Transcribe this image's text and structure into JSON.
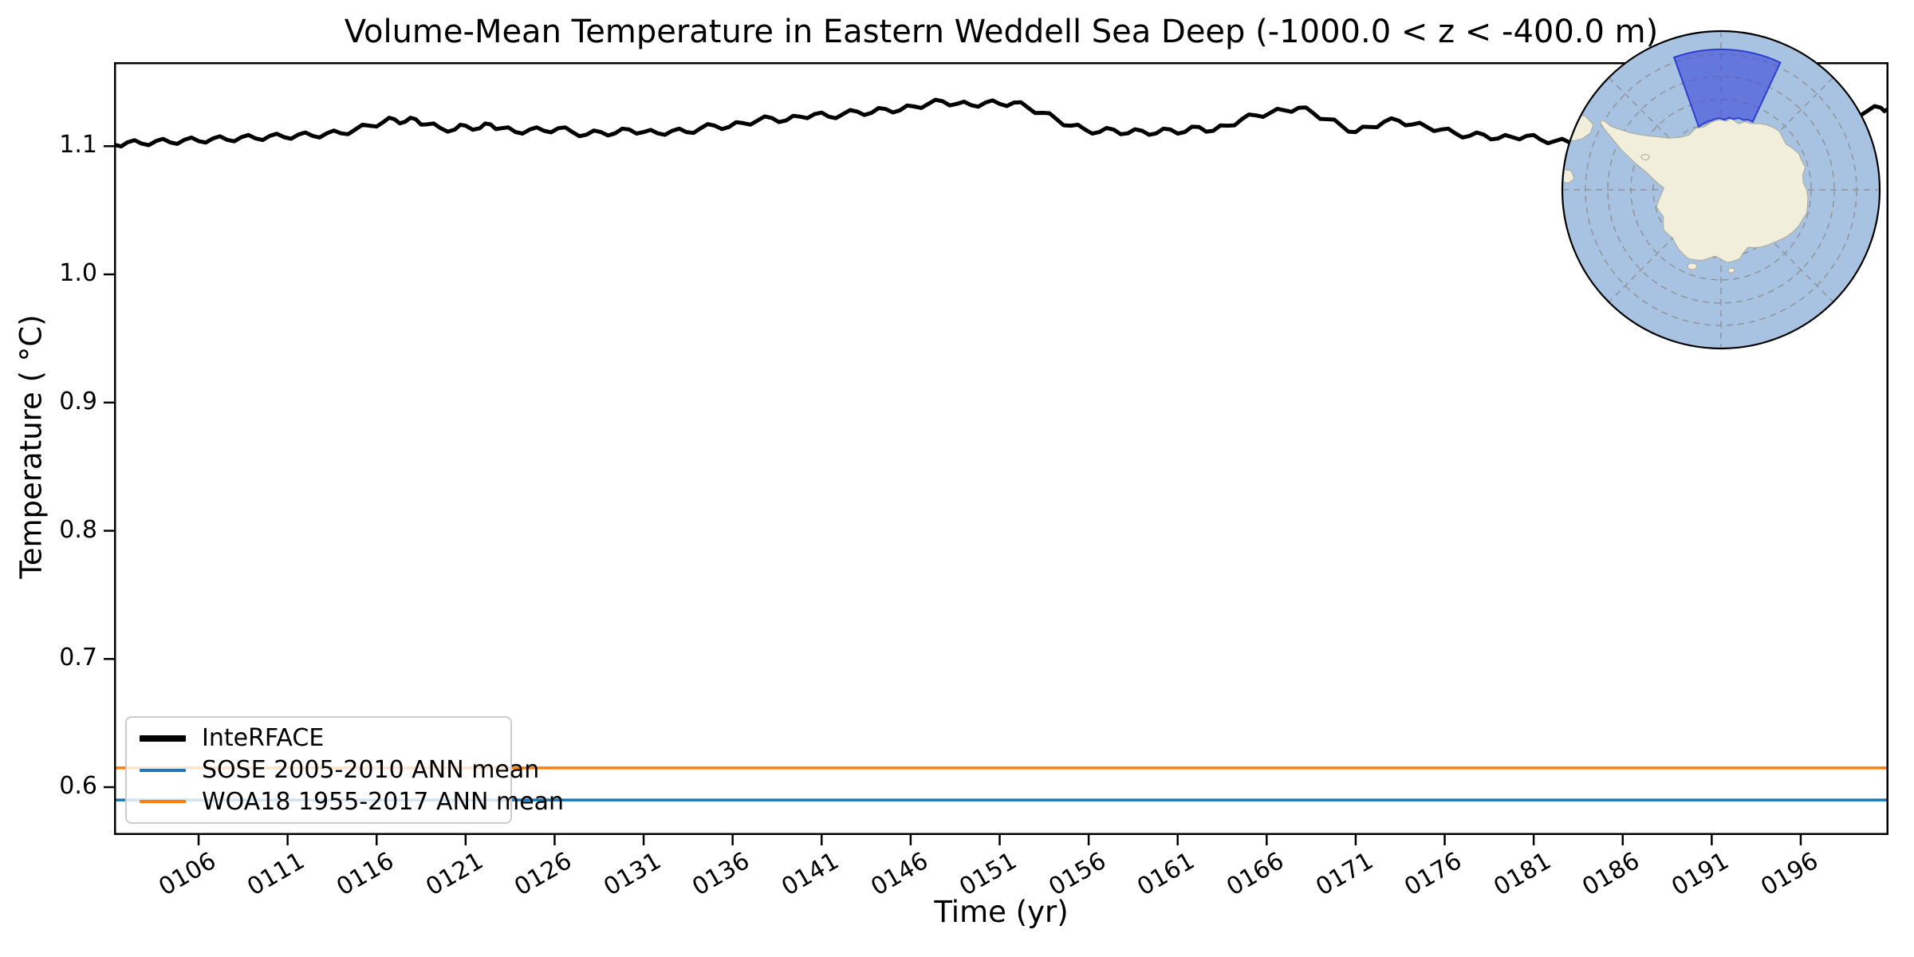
{
  "chart_data": {
    "type": "line",
    "title": "Volume-Mean Temperature in Eastern Weddell Sea Deep (-1000.0 < z < -400.0 m)",
    "xlabel": "Time (yr)",
    "ylabel": "Temperature ( °C)",
    "xlim": [
      101.25,
      200.93
    ],
    "ylim": [
      0.5627,
      1.1655
    ],
    "grid": false,
    "legend_position": "lower left",
    "xticks": [
      {
        "value": 106,
        "label": "0106"
      },
      {
        "value": 111,
        "label": "0111"
      },
      {
        "value": 116,
        "label": "0116"
      },
      {
        "value": 121,
        "label": "0121"
      },
      {
        "value": 126,
        "label": "0126"
      },
      {
        "value": 131,
        "label": "0131"
      },
      {
        "value": 136,
        "label": "0136"
      },
      {
        "value": 141,
        "label": "0141"
      },
      {
        "value": 146,
        "label": "0146"
      },
      {
        "value": 151,
        "label": "0151"
      },
      {
        "value": 156,
        "label": "0156"
      },
      {
        "value": 161,
        "label": "0161"
      },
      {
        "value": 166,
        "label": "0166"
      },
      {
        "value": 171,
        "label": "0171"
      },
      {
        "value": 176,
        "label": "0176"
      },
      {
        "value": 181,
        "label": "0181"
      },
      {
        "value": 186,
        "label": "0186"
      },
      {
        "value": 191,
        "label": "0191"
      },
      {
        "value": 196,
        "label": "0196"
      }
    ],
    "yticks": [
      {
        "value": 0.6,
        "label": "0.6"
      },
      {
        "value": 0.7,
        "label": "0.7"
      },
      {
        "value": 0.8,
        "label": "0.8"
      },
      {
        "value": 0.9,
        "label": "0.9"
      },
      {
        "value": 1.0,
        "label": "1.0"
      },
      {
        "value": 1.1,
        "label": "1.1"
      }
    ],
    "series": [
      {
        "name": "InteRFACE",
        "color": "#000000",
        "linewidth": 5,
        "legend_linewidth": 8,
        "monthly_noise": 0.0022,
        "points": [
          [
            101.3,
            1.101
          ],
          [
            102.0,
            1.103
          ],
          [
            102.8,
            1.102
          ],
          [
            103.6,
            1.104
          ],
          [
            104.4,
            1.103
          ],
          [
            105.2,
            1.105
          ],
          [
            106.0,
            1.104
          ],
          [
            106.8,
            1.106
          ],
          [
            107.6,
            1.105
          ],
          [
            108.4,
            1.107
          ],
          [
            109.2,
            1.106
          ],
          [
            110.0,
            1.108
          ],
          [
            110.8,
            1.107
          ],
          [
            111.6,
            1.109
          ],
          [
            112.4,
            1.108
          ],
          [
            113.2,
            1.11
          ],
          [
            114.0,
            1.11
          ],
          [
            114.8,
            1.113
          ],
          [
            115.6,
            1.116
          ],
          [
            116.4,
            1.119
          ],
          [
            117.0,
            1.121
          ],
          [
            117.6,
            1.119
          ],
          [
            118.2,
            1.121
          ],
          [
            118.8,
            1.117
          ],
          [
            119.6,
            1.114
          ],
          [
            120.4,
            1.113
          ],
          [
            121.0,
            1.116
          ],
          [
            121.8,
            1.114
          ],
          [
            122.4,
            1.117
          ],
          [
            123.0,
            1.114
          ],
          [
            123.8,
            1.111
          ],
          [
            124.6,
            1.113
          ],
          [
            125.4,
            1.112
          ],
          [
            126.2,
            1.114
          ],
          [
            127.0,
            1.111
          ],
          [
            127.8,
            1.109
          ],
          [
            128.6,
            1.111
          ],
          [
            129.4,
            1.11
          ],
          [
            130.2,
            1.113
          ],
          [
            131.0,
            1.111
          ],
          [
            131.8,
            1.11
          ],
          [
            132.6,
            1.112
          ],
          [
            133.4,
            1.111
          ],
          [
            134.2,
            1.114
          ],
          [
            135.0,
            1.116
          ],
          [
            135.8,
            1.115
          ],
          [
            136.6,
            1.118
          ],
          [
            137.4,
            1.12
          ],
          [
            138.2,
            1.122
          ],
          [
            139.0,
            1.12
          ],
          [
            139.8,
            1.123
          ],
          [
            140.6,
            1.125
          ],
          [
            141.4,
            1.123
          ],
          [
            142.2,
            1.125
          ],
          [
            143.0,
            1.127
          ],
          [
            143.8,
            1.126
          ],
          [
            144.6,
            1.129
          ],
          [
            145.4,
            1.128
          ],
          [
            146.2,
            1.131
          ],
          [
            147.0,
            1.133
          ],
          [
            147.8,
            1.135
          ],
          [
            148.6,
            1.133
          ],
          [
            149.4,
            1.132
          ],
          [
            150.2,
            1.134
          ],
          [
            151.0,
            1.133
          ],
          [
            151.8,
            1.134
          ],
          [
            152.6,
            1.13
          ],
          [
            153.4,
            1.126
          ],
          [
            154.2,
            1.121
          ],
          [
            155.0,
            1.116
          ],
          [
            155.8,
            1.113
          ],
          [
            156.6,
            1.111
          ],
          [
            157.4,
            1.113
          ],
          [
            158.2,
            1.11
          ],
          [
            159.0,
            1.112
          ],
          [
            159.8,
            1.11
          ],
          [
            160.6,
            1.113
          ],
          [
            161.4,
            1.111
          ],
          [
            162.2,
            1.115
          ],
          [
            163.0,
            1.112
          ],
          [
            163.8,
            1.116
          ],
          [
            164.6,
            1.121
          ],
          [
            165.4,
            1.124
          ],
          [
            166.2,
            1.126
          ],
          [
            167.0,
            1.128
          ],
          [
            167.8,
            1.13
          ],
          [
            168.6,
            1.126
          ],
          [
            169.4,
            1.121
          ],
          [
            170.2,
            1.116
          ],
          [
            171.0,
            1.111
          ],
          [
            171.8,
            1.115
          ],
          [
            172.6,
            1.119
          ],
          [
            173.4,
            1.12
          ],
          [
            174.2,
            1.117
          ],
          [
            175.0,
            1.115
          ],
          [
            175.8,
            1.113
          ],
          [
            176.6,
            1.11
          ],
          [
            177.4,
            1.108
          ],
          [
            178.2,
            1.109
          ],
          [
            179.0,
            1.106
          ],
          [
            179.8,
            1.107
          ],
          [
            180.6,
            1.108
          ],
          [
            181.4,
            1.105
          ],
          [
            182.2,
            1.104
          ],
          [
            183.0,
            1.103
          ],
          [
            183.8,
            1.104
          ],
          [
            184.6,
            1.106
          ],
          [
            185.4,
            1.108
          ],
          [
            186.2,
            1.107
          ],
          [
            187.0,
            1.11
          ],
          [
            187.8,
            1.112
          ],
          [
            188.6,
            1.111
          ],
          [
            189.4,
            1.114
          ],
          [
            190.2,
            1.113
          ],
          [
            191.0,
            1.116
          ],
          [
            191.8,
            1.118
          ],
          [
            192.6,
            1.117
          ],
          [
            193.4,
            1.12
          ],
          [
            194.2,
            1.119
          ],
          [
            195.0,
            1.122
          ],
          [
            195.8,
            1.121
          ],
          [
            196.6,
            1.124
          ],
          [
            197.4,
            1.123
          ],
          [
            198.2,
            1.126
          ],
          [
            199.0,
            1.125
          ],
          [
            199.8,
            1.128
          ],
          [
            200.5,
            1.13
          ],
          [
            200.9,
            1.129
          ]
        ]
      },
      {
        "name": "SOSE 2005-2010 ANN mean",
        "color": "#1f77b4",
        "linewidth": 3.5,
        "legend_linewidth": 4,
        "value": 0.59
      },
      {
        "name": "WOA18 1955-2017 ANN mean",
        "color": "#ff7f0e",
        "linewidth": 3.5,
        "legend_linewidth": 4,
        "value": 0.615
      }
    ]
  },
  "map_inset": {
    "projection": "south-polar-stereographic",
    "region_label": "Eastern Weddell Sea sector",
    "ocean_color": "#a8c3e2",
    "land_color": "#f1eedb",
    "land_edge_color": "#aaa998",
    "region_fill_color": "#4a5ad9",
    "region_fill_opacity": 0.72,
    "region_border_color": "#2e3ed0",
    "graticule_color": "#8f8f8f",
    "border_color": "#000000"
  }
}
